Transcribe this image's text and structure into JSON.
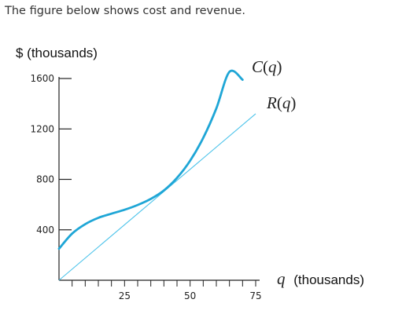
{
  "intro_text": "The figure below shows cost and revenue.",
  "chart_data": {
    "type": "line",
    "y_title": "$ (thousands)",
    "x_title_symbol": "q",
    "x_title_unit": "(thousands)",
    "x_ticks": [
      25,
      50,
      75
    ],
    "y_ticks": [
      400,
      800,
      1200,
      1600
    ],
    "xlim": [
      0,
      75
    ],
    "ylim": [
      0,
      1600
    ],
    "grid": false,
    "colors": {
      "cost": "#1fa6d6",
      "revenue": "#4cc3ea",
      "axis": "#222222"
    },
    "series": [
      {
        "name": "C(q)",
        "label_letter": "C",
        "label_arg": "q",
        "x": [
          0,
          5,
          10,
          15,
          20,
          25,
          30,
          35,
          40,
          45,
          50,
          55,
          60,
          65,
          70
        ],
        "values": [
          250,
          370,
          445,
          495,
          528,
          559,
          597,
          645,
          712,
          812,
          948,
          1129,
          1363,
          1653,
          1590
        ]
      },
      {
        "name": "R(q)",
        "label_letter": "R",
        "label_arg": "q",
        "x": [
          0,
          75
        ],
        "values": [
          0,
          1320
        ]
      }
    ]
  }
}
